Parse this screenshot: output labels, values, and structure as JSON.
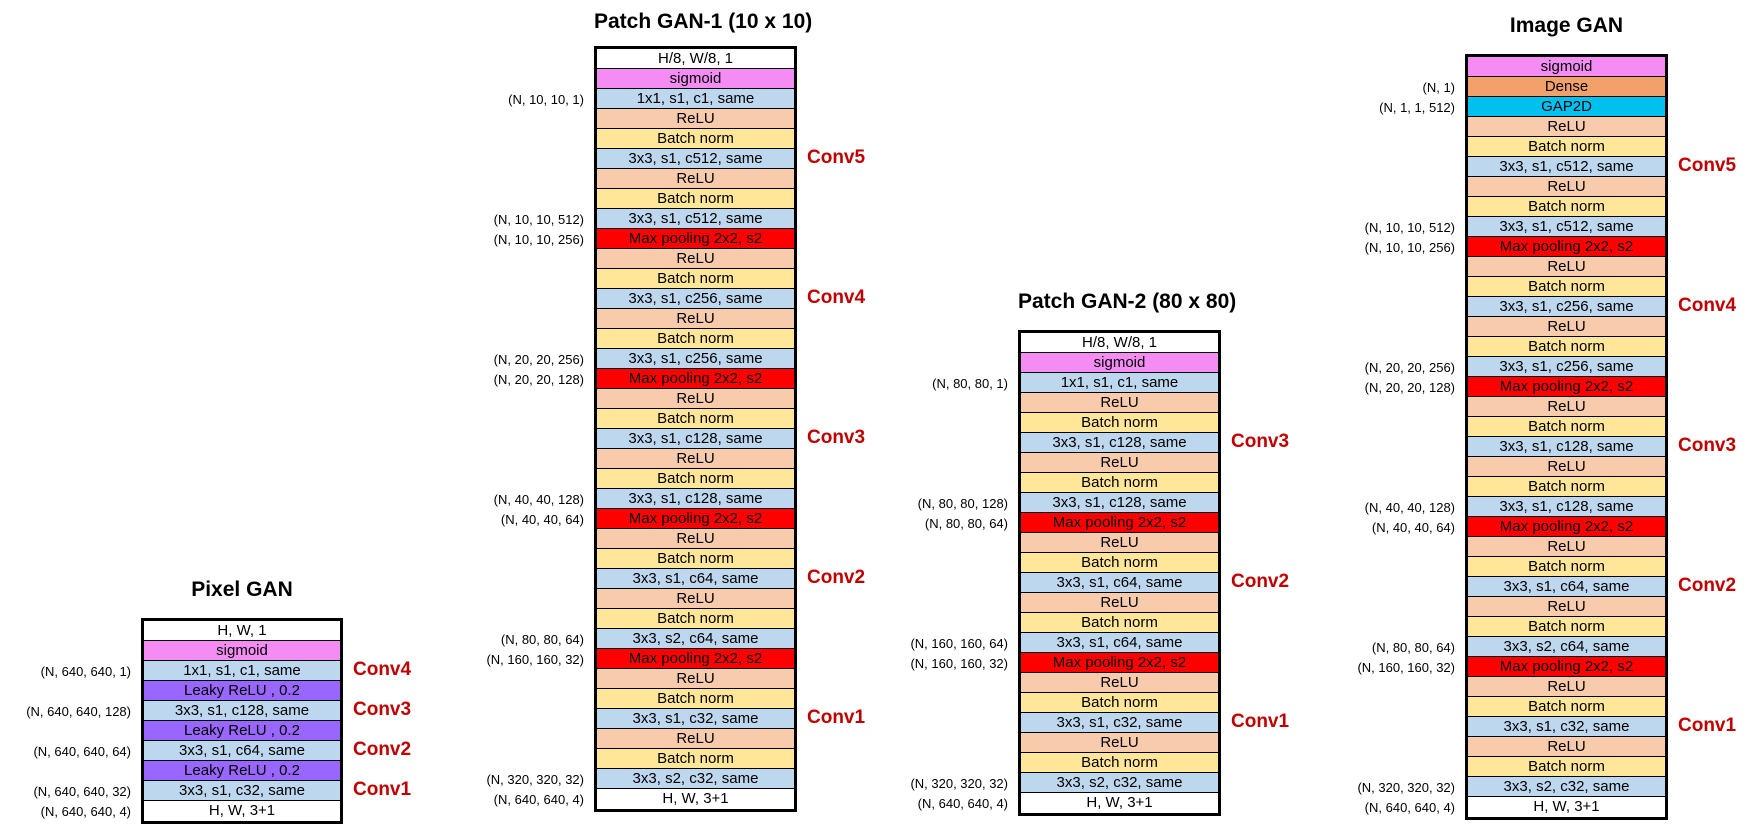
{
  "networks": [
    {
      "id": "pixel-gan",
      "title": "Pixel GAN",
      "layers": [
        {
          "text": "H, W, 1",
          "type": "io"
        },
        {
          "text": "sigmoid",
          "type": "sigmoid"
        },
        {
          "text": "1x1, s1, c1, same",
          "type": "conv"
        },
        {
          "text": "Leaky ReLU , 0.2",
          "type": "leaky"
        },
        {
          "text": "3x3, s1, c128, same",
          "type": "conv"
        },
        {
          "text": "Leaky ReLU , 0.2",
          "type": "leaky"
        },
        {
          "text": "3x3, s1, c64, same",
          "type": "conv"
        },
        {
          "text": "Leaky ReLU , 0.2",
          "type": "leaky"
        },
        {
          "text": "3x3, s1, c32, same",
          "type": "conv"
        },
        {
          "text": "H, W, 3+1",
          "type": "io"
        }
      ],
      "shapes": [
        {
          "text": "(N, 640, 640, 1)",
          "row": 2
        },
        {
          "text": "(N, 640, 640, 128)",
          "row": 4
        },
        {
          "text": "(N, 640, 640, 64)",
          "row": 6
        },
        {
          "text": "(N, 640, 640, 32)",
          "row": 8
        },
        {
          "text": "(N, 640, 640, 4)",
          "row": 9
        }
      ],
      "blocks": [
        {
          "text": "Conv4",
          "row": 2
        },
        {
          "text": "Conv3",
          "row": 4
        },
        {
          "text": "Conv2",
          "row": 6
        },
        {
          "text": "Conv1",
          "row": 8
        }
      ]
    },
    {
      "id": "patch-gan-1",
      "title": "Patch GAN-1 (10 x 10)",
      "layers": [
        {
          "text": "H/8, W/8, 1",
          "type": "io"
        },
        {
          "text": "sigmoid",
          "type": "sigmoid"
        },
        {
          "text": "1x1, s1, c1, same",
          "type": "conv"
        },
        {
          "text": "ReLU",
          "type": "relu"
        },
        {
          "text": "Batch norm",
          "type": "bn"
        },
        {
          "text": "3x3, s1, c512, same",
          "type": "conv"
        },
        {
          "text": "ReLU",
          "type": "relu"
        },
        {
          "text": "Batch norm",
          "type": "bn"
        },
        {
          "text": "3x3, s1, c512, same",
          "type": "conv"
        },
        {
          "text": "Max pooling 2x2, s2",
          "type": "pool"
        },
        {
          "text": "ReLU",
          "type": "relu"
        },
        {
          "text": "Batch norm",
          "type": "bn"
        },
        {
          "text": "3x3, s1, c256, same",
          "type": "conv"
        },
        {
          "text": "ReLU",
          "type": "relu"
        },
        {
          "text": "Batch norm",
          "type": "bn"
        },
        {
          "text": "3x3, s1, c256, same",
          "type": "conv"
        },
        {
          "text": "Max pooling 2x2, s2",
          "type": "pool"
        },
        {
          "text": "ReLU",
          "type": "relu"
        },
        {
          "text": "Batch norm",
          "type": "bn"
        },
        {
          "text": "3x3, s1, c128, same",
          "type": "conv"
        },
        {
          "text": "ReLU",
          "type": "relu"
        },
        {
          "text": "Batch norm",
          "type": "bn"
        },
        {
          "text": "3x3, s1, c128, same",
          "type": "conv"
        },
        {
          "text": "Max pooling 2x2, s2",
          "type": "pool"
        },
        {
          "text": "ReLU",
          "type": "relu"
        },
        {
          "text": "Batch norm",
          "type": "bn"
        },
        {
          "text": "3x3, s1, c64, same",
          "type": "conv"
        },
        {
          "text": "ReLU",
          "type": "relu"
        },
        {
          "text": "Batch norm",
          "type": "bn"
        },
        {
          "text": "3x3, s2, c64, same",
          "type": "conv"
        },
        {
          "text": "Max pooling 2x2, s2",
          "type": "pool"
        },
        {
          "text": "ReLU",
          "type": "relu"
        },
        {
          "text": "Batch norm",
          "type": "bn"
        },
        {
          "text": "3x3, s1, c32, same",
          "type": "conv"
        },
        {
          "text": "ReLU",
          "type": "relu"
        },
        {
          "text": "Batch norm",
          "type": "bn"
        },
        {
          "text": "3x3, s2, c32, same",
          "type": "conv"
        },
        {
          "text": "H, W, 3+1",
          "type": "io"
        }
      ],
      "shapes": [
        {
          "text": "(N, 10, 10, 1)",
          "row": 2
        },
        {
          "text": "(N, 10, 10, 512)",
          "row": 8
        },
        {
          "text": "(N, 10, 10, 256)",
          "row": 9
        },
        {
          "text": "(N, 20, 20, 256)",
          "row": 15
        },
        {
          "text": "(N, 20, 20, 128)",
          "row": 16
        },
        {
          "text": "(N, 40, 40, 128)",
          "row": 22
        },
        {
          "text": "(N, 40, 40, 64)",
          "row": 23
        },
        {
          "text": "(N, 80, 80, 64)",
          "row": 29
        },
        {
          "text": "(N, 160, 160, 32)",
          "row": 30
        },
        {
          "text": "(N, 320, 320, 32)",
          "row": 36
        },
        {
          "text": "(N, 640, 640, 4)",
          "row": 37
        }
      ],
      "blocks": [
        {
          "text": "Conv5",
          "row": 5
        },
        {
          "text": "Conv4",
          "row": 12
        },
        {
          "text": "Conv3",
          "row": 19
        },
        {
          "text": "Conv2",
          "row": 26
        },
        {
          "text": "Conv1",
          "row": 33
        }
      ]
    },
    {
      "id": "patch-gan-2",
      "title": "Patch GAN-2 (80 x 80)",
      "layers": [
        {
          "text": "H/8, W/8, 1",
          "type": "io"
        },
        {
          "text": "sigmoid",
          "type": "sigmoid"
        },
        {
          "text": "1x1, s1, c1, same",
          "type": "conv"
        },
        {
          "text": "ReLU",
          "type": "relu"
        },
        {
          "text": "Batch norm",
          "type": "bn"
        },
        {
          "text": "3x3, s1, c128, same",
          "type": "conv"
        },
        {
          "text": "ReLU",
          "type": "relu"
        },
        {
          "text": "Batch norm",
          "type": "bn"
        },
        {
          "text": "3x3, s1, c128, same",
          "type": "conv"
        },
        {
          "text": "Max pooling 2x2, s2",
          "type": "pool"
        },
        {
          "text": "ReLU",
          "type": "relu"
        },
        {
          "text": "Batch norm",
          "type": "bn"
        },
        {
          "text": "3x3, s1, c64, same",
          "type": "conv"
        },
        {
          "text": "ReLU",
          "type": "relu"
        },
        {
          "text": "Batch norm",
          "type": "bn"
        },
        {
          "text": "3x3, s1, c64, same",
          "type": "conv"
        },
        {
          "text": "Max pooling 2x2, s2",
          "type": "pool"
        },
        {
          "text": "ReLU",
          "type": "relu"
        },
        {
          "text": "Batch norm",
          "type": "bn"
        },
        {
          "text": "3x3, s1, c32, same",
          "type": "conv"
        },
        {
          "text": "ReLU",
          "type": "relu"
        },
        {
          "text": "Batch norm",
          "type": "bn"
        },
        {
          "text": "3x3, s2, c32, same",
          "type": "conv"
        },
        {
          "text": "H, W, 3+1",
          "type": "io"
        }
      ],
      "shapes": [
        {
          "text": "(N, 80, 80, 1)",
          "row": 2
        },
        {
          "text": "(N, 80, 80, 128)",
          "row": 8
        },
        {
          "text": "(N, 80, 80, 64)",
          "row": 9
        },
        {
          "text": "(N, 160, 160, 64)",
          "row": 15
        },
        {
          "text": "(N, 160, 160, 32)",
          "row": 16
        },
        {
          "text": "(N, 320, 320, 32)",
          "row": 22
        },
        {
          "text": "(N, 640, 640, 4)",
          "row": 23
        }
      ],
      "blocks": [
        {
          "text": "Conv3",
          "row": 5
        },
        {
          "text": "Conv2",
          "row": 12
        },
        {
          "text": "Conv1",
          "row": 19
        }
      ]
    },
    {
      "id": "image-gan",
      "title": "Image GAN",
      "layers": [
        {
          "text": "sigmoid",
          "type": "sigmoid"
        },
        {
          "text": "Dense",
          "type": "dense"
        },
        {
          "text": "GAP2D",
          "type": "gap"
        },
        {
          "text": "ReLU",
          "type": "relu"
        },
        {
          "text": "Batch norm",
          "type": "bn"
        },
        {
          "text": "3x3, s1, c512, same",
          "type": "conv"
        },
        {
          "text": "ReLU",
          "type": "relu"
        },
        {
          "text": "Batch norm",
          "type": "bn"
        },
        {
          "text": "3x3, s1, c512, same",
          "type": "conv"
        },
        {
          "text": "Max pooling 2x2, s2",
          "type": "pool"
        },
        {
          "text": "ReLU",
          "type": "relu"
        },
        {
          "text": "Batch norm",
          "type": "bn"
        },
        {
          "text": "3x3, s1, c256, same",
          "type": "conv"
        },
        {
          "text": "ReLU",
          "type": "relu"
        },
        {
          "text": "Batch norm",
          "type": "bn"
        },
        {
          "text": "3x3, s1, c256, same",
          "type": "conv"
        },
        {
          "text": "Max pooling 2x2, s2",
          "type": "pool"
        },
        {
          "text": "ReLU",
          "type": "relu"
        },
        {
          "text": "Batch norm",
          "type": "bn"
        },
        {
          "text": "3x3, s1, c128, same",
          "type": "conv"
        },
        {
          "text": "ReLU",
          "type": "relu"
        },
        {
          "text": "Batch norm",
          "type": "bn"
        },
        {
          "text": "3x3, s1, c128, same",
          "type": "conv"
        },
        {
          "text": "Max pooling 2x2, s2",
          "type": "pool"
        },
        {
          "text": "ReLU",
          "type": "relu"
        },
        {
          "text": "Batch norm",
          "type": "bn"
        },
        {
          "text": "3x3, s1, c64, same",
          "type": "conv"
        },
        {
          "text": "ReLU",
          "type": "relu"
        },
        {
          "text": "Batch norm",
          "type": "bn"
        },
        {
          "text": "3x3, s2, c64, same",
          "type": "conv"
        },
        {
          "text": "Max pooling 2x2, s2",
          "type": "pool"
        },
        {
          "text": "ReLU",
          "type": "relu"
        },
        {
          "text": "Batch norm",
          "type": "bn"
        },
        {
          "text": "3x3, s1, c32, same",
          "type": "conv"
        },
        {
          "text": "ReLU",
          "type": "relu"
        },
        {
          "text": "Batch norm",
          "type": "bn"
        },
        {
          "text": "3x3, s2, c32, same",
          "type": "conv"
        },
        {
          "text": "H, W, 3+1",
          "type": "io"
        }
      ],
      "shapes": [
        {
          "text": "(N, 1)",
          "row": 1
        },
        {
          "text": "(N, 1, 1, 512)",
          "row": 2
        },
        {
          "text": "(N, 10, 10, 512)",
          "row": 8
        },
        {
          "text": "(N, 10, 10, 256)",
          "row": 9
        },
        {
          "text": "(N, 20, 20, 256)",
          "row": 15
        },
        {
          "text": "(N, 20, 20, 128)",
          "row": 16
        },
        {
          "text": "(N, 40, 40, 128)",
          "row": 22
        },
        {
          "text": "(N, 40, 40, 64)",
          "row": 23
        },
        {
          "text": "(N, 80, 80, 64)",
          "row": 29
        },
        {
          "text": "(N, 160, 160, 32)",
          "row": 30
        },
        {
          "text": "(N, 320, 320, 32)",
          "row": 36
        },
        {
          "text": "(N, 640, 640, 4)",
          "row": 37
        }
      ],
      "blocks": [
        {
          "text": "Conv5",
          "row": 5
        },
        {
          "text": "Conv4",
          "row": 12
        },
        {
          "text": "Conv3",
          "row": 19
        },
        {
          "text": "Conv2",
          "row": 26
        },
        {
          "text": "Conv1",
          "row": 33
        }
      ]
    }
  ]
}
